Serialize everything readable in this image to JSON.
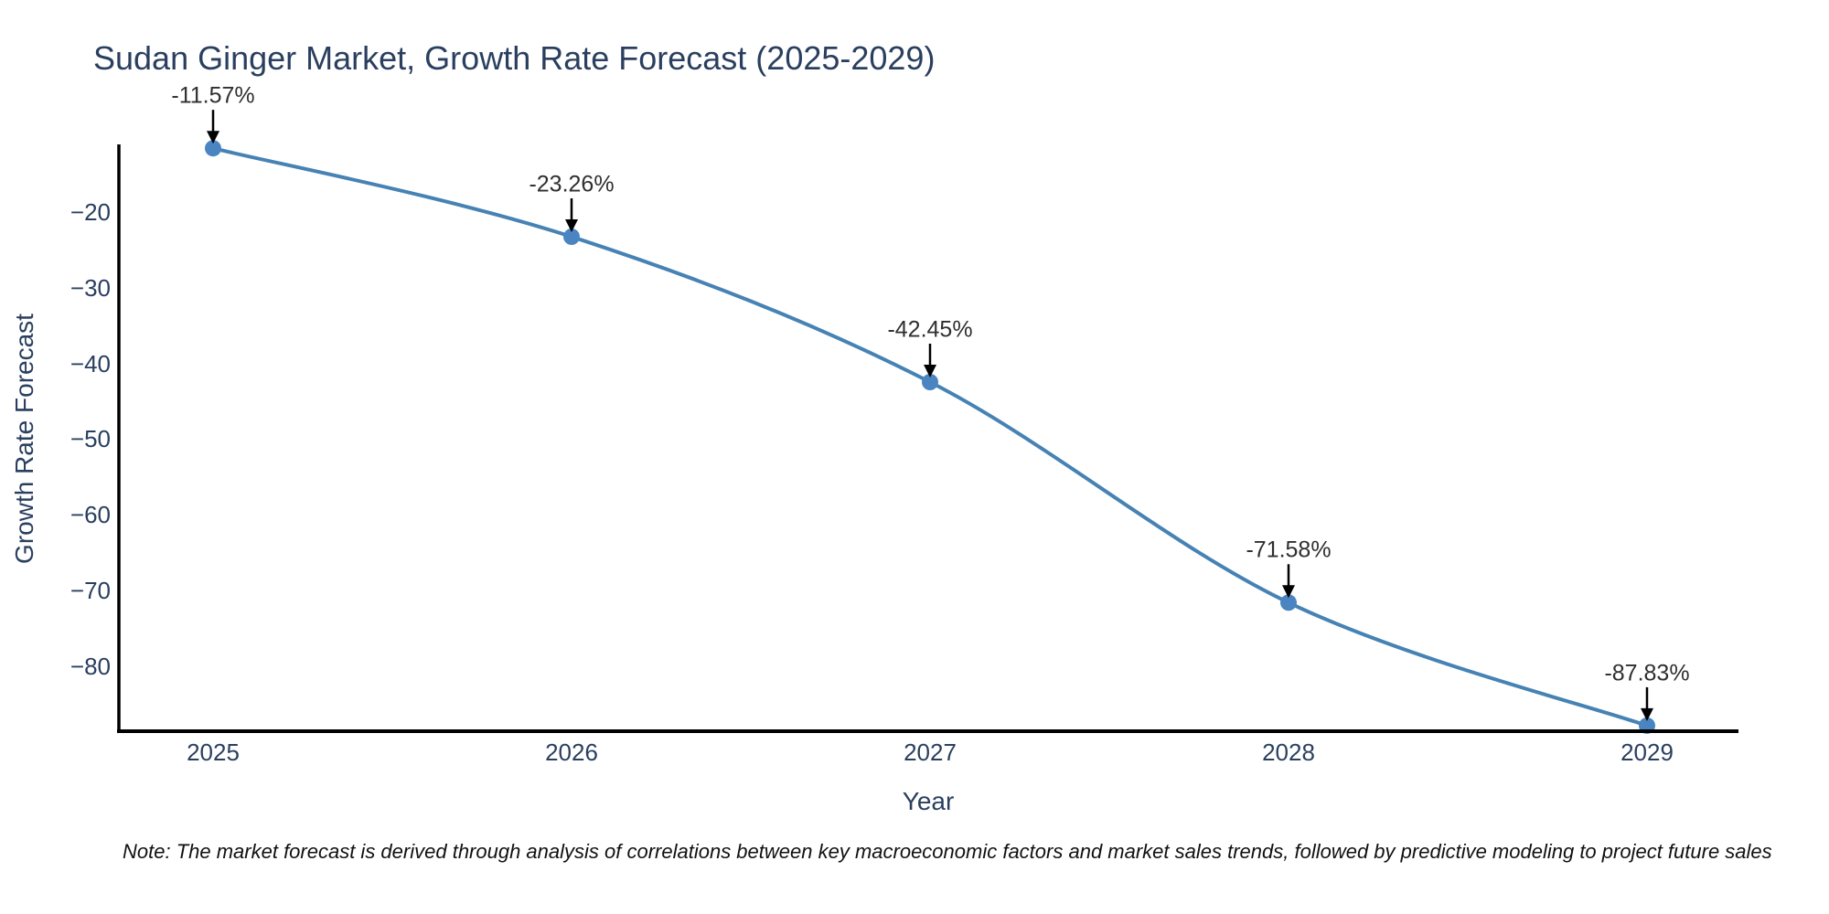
{
  "chart_data": {
    "type": "line",
    "title": "Sudan Ginger Market, Growth Rate Forecast (2025-2029)",
    "xlabel": "Year",
    "ylabel": "Growth Rate Forecast",
    "categories": [
      2025,
      2026,
      2027,
      2028,
      2029
    ],
    "series": [
      {
        "name": "Growth Rate Forecast",
        "values": [
          -11.57,
          -23.26,
          -42.45,
          -71.58,
          -87.83
        ]
      }
    ],
    "point_labels": [
      "-11.57%",
      "-23.26%",
      "-42.45%",
      "-71.58%",
      "-87.83%"
    ],
    "x_tick_labels": [
      "2025",
      "2026",
      "2027",
      "2028",
      "2029"
    ],
    "y_tick_labels": [
      "−20",
      "−30",
      "−40",
      "−50",
      "−60",
      "−70",
      "−80"
    ],
    "y_tick_values": [
      -20,
      -30,
      -40,
      -50,
      -60,
      -70,
      -80
    ],
    "ylim": [
      -88.7,
      -11.3
    ],
    "grid": false,
    "legend": "none",
    "line_shape": "spline",
    "colors": {
      "line": "#4682b4",
      "marker": "#4a85c2",
      "axis": "#000000",
      "title_text": "#2a3f5f",
      "tick_text": "#2a3f5f",
      "annotation_text": "#2f2f2f",
      "arrow": "#000000",
      "background": "#ffffff"
    }
  },
  "note": {
    "text": "Note: The market forecast is derived through analysis of correlations between key macroeconomic factors and market sales trends, followed by predictive modeling to project future sales"
  }
}
